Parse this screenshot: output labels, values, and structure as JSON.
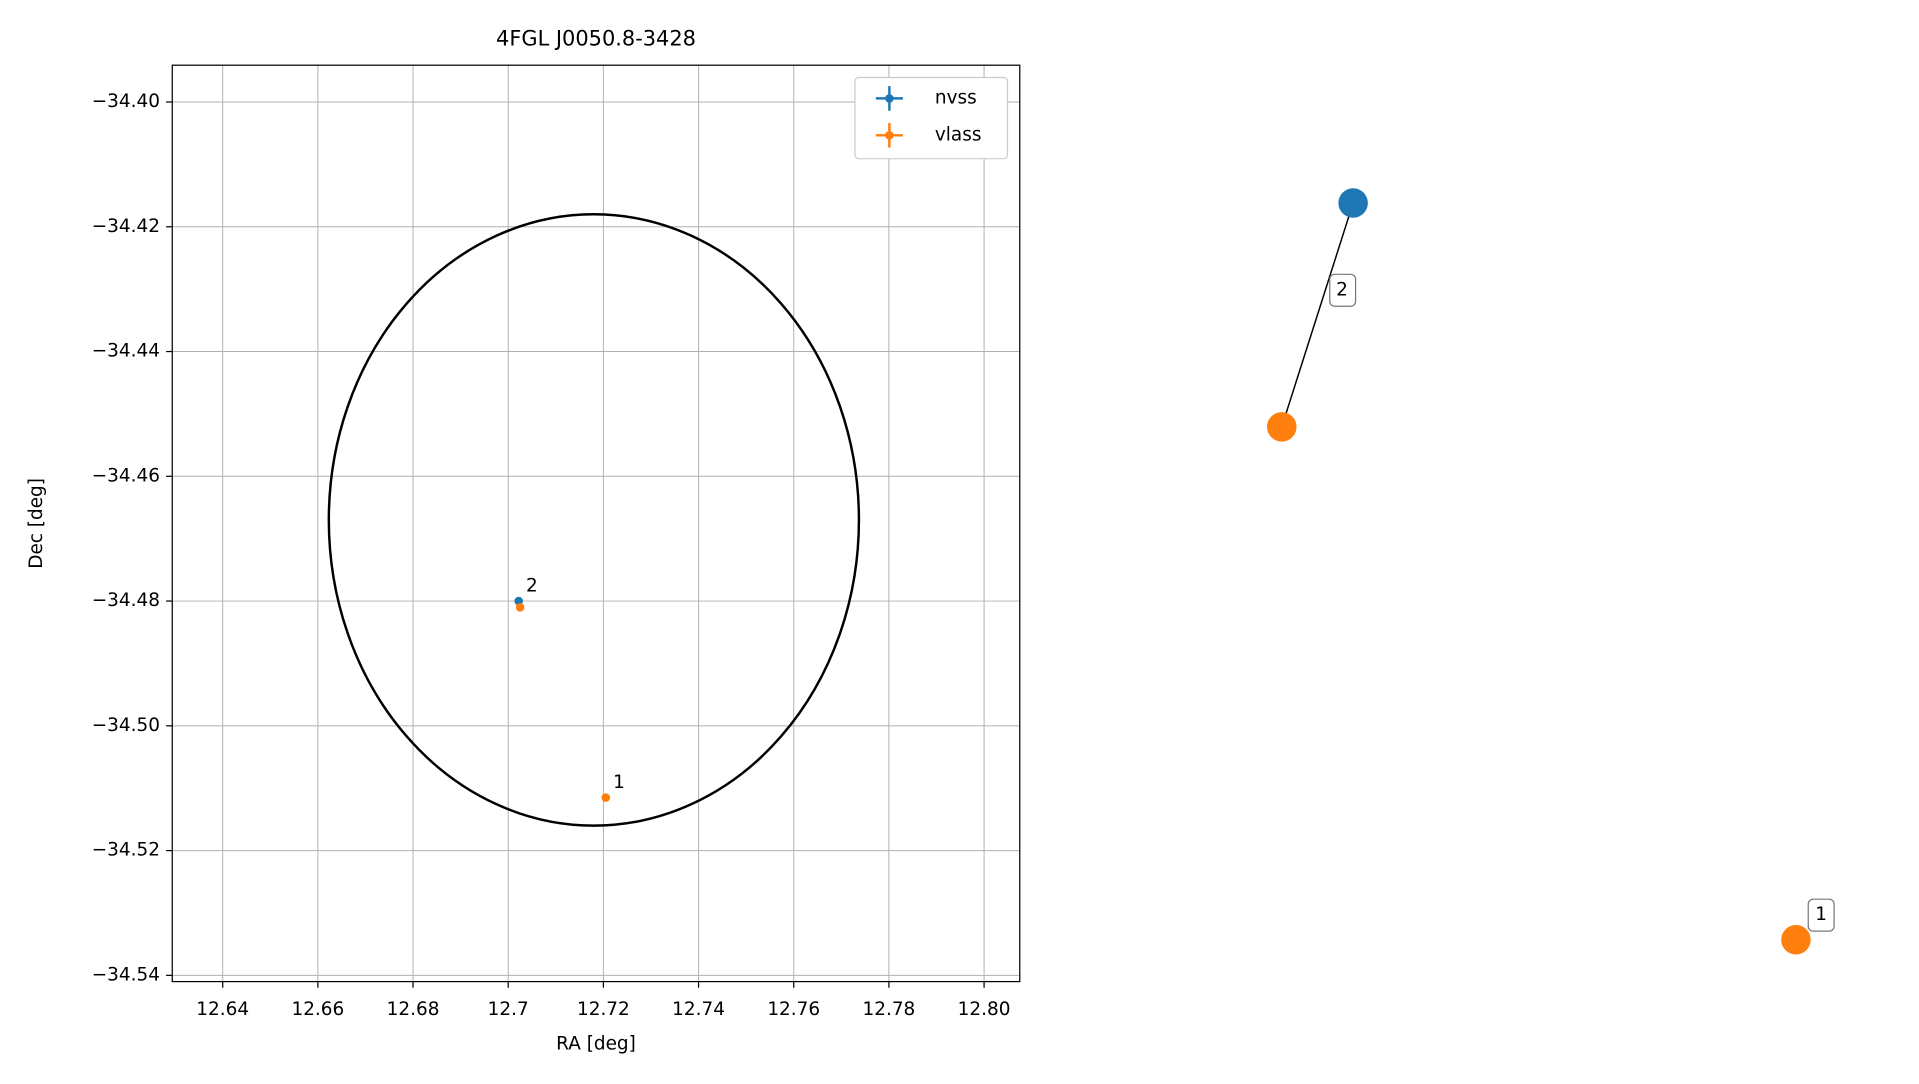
{
  "chart_data": [
    {
      "type": "scatter",
      "title": "4FGL J0050.8-3428",
      "x_label": "RA [deg]",
      "y_label": "Dec [deg]",
      "xlim": [
        12.6294,
        12.8075
      ],
      "ylim": [
        -34.541,
        -34.3941
      ],
      "xticks": [
        12.64,
        12.66,
        12.68,
        12.7,
        {
          "value": 12.72,
          "label": "12.72"
        },
        12.74,
        12.76,
        12.78,
        {
          "value": 12.8,
          "label": "12.80"
        }
      ],
      "yticks": [
        {
          "value": -34.4,
          "label": "−34.40"
        },
        {
          "value": -34.42,
          "label": "−34.42"
        },
        {
          "value": -34.44,
          "label": "−34.44"
        },
        {
          "value": -34.46,
          "label": "−34.46"
        },
        {
          "value": -34.48,
          "label": "−34.48"
        },
        {
          "value": -34.5,
          "label": "−34.50"
        },
        {
          "value": -34.52,
          "label": "−34.52"
        },
        {
          "value": -34.54,
          "label": "−34.54"
        }
      ],
      "xticks_fix": null,
      "grid": true,
      "legend": "upper right",
      "series": [
        {
          "name": "nvss",
          "color": "#1f77b4",
          "x": [
            12.7022
          ],
          "y": [
            -34.48
          ]
        },
        {
          "name": "vlass",
          "color": "#ff7f0e",
          "x": [
            12.7025,
            12.7205
          ],
          "y": [
            -34.481,
            -34.5115
          ]
        }
      ],
      "annotations": [
        {
          "text": "2",
          "x": 12.7022,
          "y": -34.48
        },
        {
          "text": "1",
          "x": 12.7205,
          "y": -34.5115
        }
      ],
      "ellipse": {
        "center": [
          12.718,
          -34.467
        ],
        "rx": 0.0557,
        "ry": 0.049,
        "color": "#000000"
      }
    },
    {
      "type": "graph",
      "nodes": [
        {
          "color": "#1f77b4"
        },
        {
          "color": "#ff7f0e"
        },
        {
          "color": "#ff7f0e",
          "label": "1"
        }
      ],
      "edges": [
        {
          "source": 0,
          "target": 1,
          "label": "2"
        }
      ]
    }
  ]
}
